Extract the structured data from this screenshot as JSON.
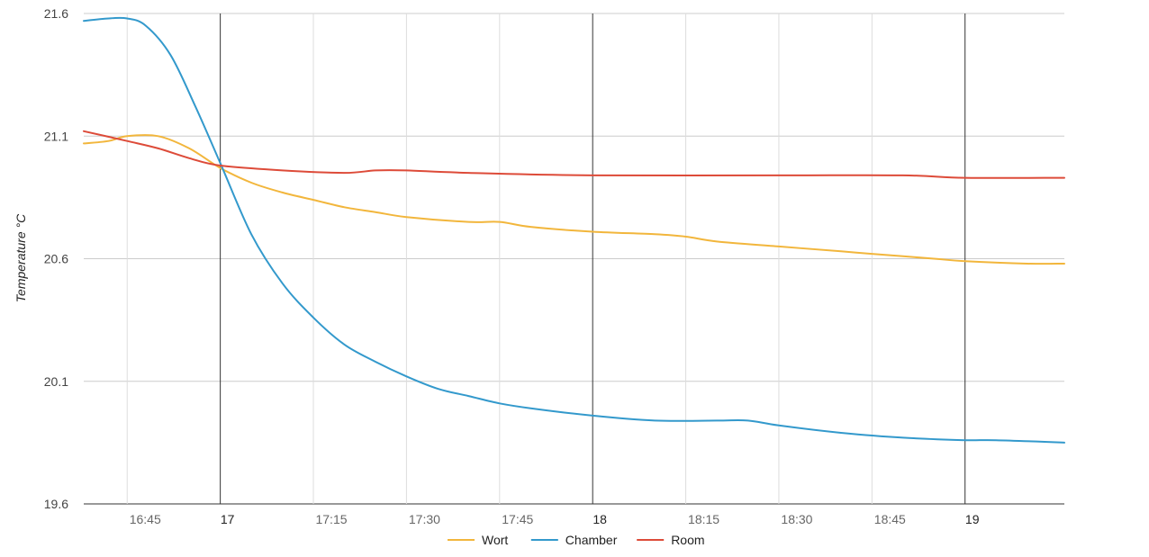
{
  "chart_data": {
    "type": "line",
    "ylabel": "Temperature °C",
    "ylim": [
      19.6,
      21.6
    ],
    "y_ticks": [
      "19.6",
      "20.1",
      "20.6",
      "21.1",
      "21.6"
    ],
    "x_range": [
      "16:38",
      "19:16"
    ],
    "x_ticks": [
      {
        "time": "16:45",
        "label": "16:45",
        "major": false
      },
      {
        "time": "17:00",
        "label": "17",
        "major": true
      },
      {
        "time": "17:15",
        "label": "17:15",
        "major": false
      },
      {
        "time": "17:30",
        "label": "17:30",
        "major": false
      },
      {
        "time": "17:45",
        "label": "17:45",
        "major": false
      },
      {
        "time": "18:00",
        "label": "18",
        "major": true
      },
      {
        "time": "18:15",
        "label": "18:15",
        "major": false
      },
      {
        "time": "18:30",
        "label": "18:30",
        "major": false
      },
      {
        "time": "18:45",
        "label": "18:45",
        "major": false
      },
      {
        "time": "19:00",
        "label": "19",
        "major": true
      }
    ],
    "grid": true,
    "legend_position": "bottom",
    "series": [
      {
        "name": "Wort",
        "color": "#f2b63c",
        "points": [
          [
            "16:38",
            21.07
          ],
          [
            "16:42",
            21.08
          ],
          [
            "16:45",
            21.1
          ],
          [
            "16:50",
            21.1
          ],
          [
            "16:55",
            21.05
          ],
          [
            "17:00",
            20.97
          ],
          [
            "17:05",
            20.91
          ],
          [
            "17:10",
            20.87
          ],
          [
            "17:15",
            20.84
          ],
          [
            "17:20",
            20.81
          ],
          [
            "17:25",
            20.79
          ],
          [
            "17:30",
            20.77
          ],
          [
            "17:40",
            20.75
          ],
          [
            "17:45",
            20.75
          ],
          [
            "17:50",
            20.73
          ],
          [
            "18:00",
            20.71
          ],
          [
            "18:10",
            20.7
          ],
          [
            "18:15",
            20.69
          ],
          [
            "18:20",
            20.67
          ],
          [
            "18:30",
            20.65
          ],
          [
            "18:40",
            20.63
          ],
          [
            "18:45",
            20.62
          ],
          [
            "18:55",
            20.6
          ],
          [
            "19:00",
            20.59
          ],
          [
            "19:10",
            20.58
          ],
          [
            "19:16",
            20.58
          ]
        ]
      },
      {
        "name": "Chamber",
        "color": "#3399cc",
        "points": [
          [
            "16:38",
            21.57
          ],
          [
            "16:42",
            21.58
          ],
          [
            "16:45",
            21.58
          ],
          [
            "16:48",
            21.55
          ],
          [
            "16:52",
            21.43
          ],
          [
            "16:56",
            21.22
          ],
          [
            "17:00",
            20.99
          ],
          [
            "17:05",
            20.7
          ],
          [
            "17:10",
            20.5
          ],
          [
            "17:15",
            20.36
          ],
          [
            "17:20",
            20.25
          ],
          [
            "17:25",
            20.18
          ],
          [
            "17:30",
            20.12
          ],
          [
            "17:35",
            20.07
          ],
          [
            "17:40",
            20.04
          ],
          [
            "17:45",
            20.01
          ],
          [
            "17:50",
            19.99
          ],
          [
            "18:00",
            19.96
          ],
          [
            "18:10",
            19.94
          ],
          [
            "18:20",
            19.94
          ],
          [
            "18:25",
            19.94
          ],
          [
            "18:30",
            19.92
          ],
          [
            "18:40",
            19.89
          ],
          [
            "18:50",
            19.87
          ],
          [
            "19:00",
            19.86
          ],
          [
            "19:05",
            19.86
          ],
          [
            "19:16",
            19.85
          ]
        ]
      },
      {
        "name": "Room",
        "color": "#dd4b39",
        "points": [
          [
            "16:38",
            21.12
          ],
          [
            "16:45",
            21.08
          ],
          [
            "16:50",
            21.05
          ],
          [
            "16:55",
            21.01
          ],
          [
            "17:00",
            20.98
          ],
          [
            "17:10",
            20.96
          ],
          [
            "17:20",
            20.95
          ],
          [
            "17:25",
            20.96
          ],
          [
            "17:30",
            20.96
          ],
          [
            "17:40",
            20.95
          ],
          [
            "18:00",
            20.94
          ],
          [
            "18:30",
            20.94
          ],
          [
            "18:50",
            20.94
          ],
          [
            "19:00",
            20.93
          ],
          [
            "19:16",
            20.93
          ]
        ]
      }
    ]
  }
}
